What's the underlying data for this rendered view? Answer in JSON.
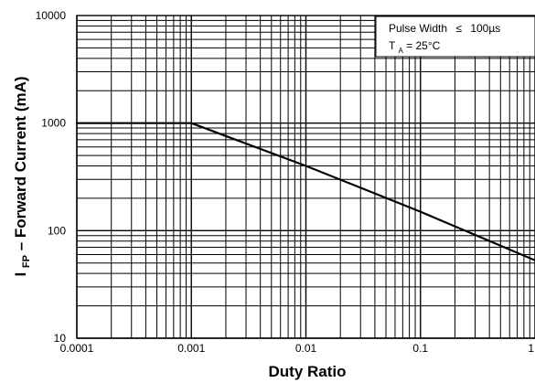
{
  "chart_data": {
    "type": "line",
    "title": "",
    "xlabel": "Duty Ratio",
    "ylabel": {
      "main": "I",
      "sub": "FP",
      "rest": " – Forward Current  (mA)"
    },
    "x_scale": "log",
    "y_scale": "log",
    "xlim": [
      0.0001,
      1
    ],
    "ylim": [
      10,
      10000
    ],
    "x_ticks": [
      {
        "value": 0.0001,
        "label": "0.0001"
      },
      {
        "value": 0.001,
        "label": "0.001"
      },
      {
        "value": 0.01,
        "label": "0.01"
      },
      {
        "value": 0.1,
        "label": "0.1"
      },
      {
        "value": 1,
        "label": "1"
      }
    ],
    "y_ticks": [
      {
        "value": 10,
        "label": "10"
      },
      {
        "value": 100,
        "label": "100"
      },
      {
        "value": 1000,
        "label": "1000"
      },
      {
        "value": 10000,
        "label": "10000"
      }
    ],
    "grid": true,
    "series": [
      {
        "x": [
          0.0001,
          0.001,
          0.01,
          0.1,
          1
        ],
        "y": [
          1000,
          1000,
          400,
          150,
          53
        ]
      }
    ],
    "annotation": {
      "line1_prefix": "Pulse Width",
      "line1_symbol": "≤",
      "line1_value": "100µs",
      "line2_main": "T",
      "line2_sub": "A",
      "line2_rest": "= 25°C"
    },
    "colors": {
      "line": "#000000",
      "grid": "#000000",
      "background": "#ffffff"
    }
  }
}
